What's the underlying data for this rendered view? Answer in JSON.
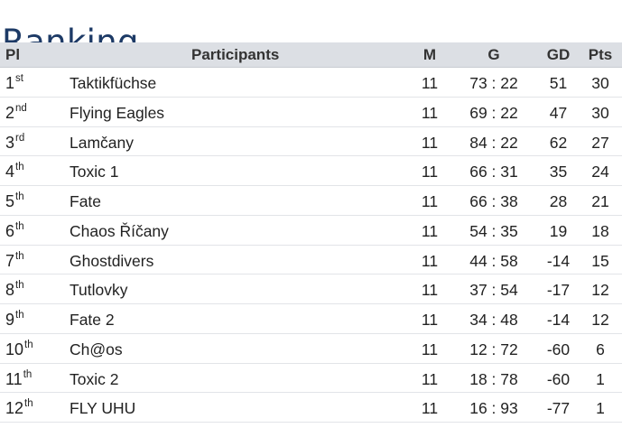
{
  "page": {
    "title": "Ranking",
    "title_color": "#1d3a66"
  },
  "table": {
    "header_bg": "#dcdfe4",
    "columns": {
      "pl": "Pl",
      "participants": "Participants",
      "m": "M",
      "g": "G",
      "gd": "GD",
      "pts": "Pts"
    },
    "rows": [
      {
        "rank": "1",
        "suffix": "st",
        "name": "Taktikfüchse",
        "m": "11",
        "g": "73 : 22",
        "gd": "51",
        "pts": "30"
      },
      {
        "rank": "2",
        "suffix": "nd",
        "name": "Flying Eagles",
        "m": "11",
        "g": "69 : 22",
        "gd": "47",
        "pts": "30"
      },
      {
        "rank": "3",
        "suffix": "rd",
        "name": "Lamčany",
        "m": "11",
        "g": "84 : 22",
        "gd": "62",
        "pts": "27"
      },
      {
        "rank": "4",
        "suffix": "th",
        "name": "Toxic 1",
        "m": "11",
        "g": "66 : 31",
        "gd": "35",
        "pts": "24"
      },
      {
        "rank": "5",
        "suffix": "th",
        "name": "Fate",
        "m": "11",
        "g": "66 : 38",
        "gd": "28",
        "pts": "21"
      },
      {
        "rank": "6",
        "suffix": "th",
        "name": "Chaos Říčany",
        "m": "11",
        "g": "54 : 35",
        "gd": "19",
        "pts": "18"
      },
      {
        "rank": "7",
        "suffix": "th",
        "name": "Ghostdivers",
        "m": "11",
        "g": "44 : 58",
        "gd": "-14",
        "pts": "15"
      },
      {
        "rank": "8",
        "suffix": "th",
        "name": "Tutlovky",
        "m": "11",
        "g": "37 : 54",
        "gd": "-17",
        "pts": "12"
      },
      {
        "rank": "9",
        "suffix": "th",
        "name": "Fate 2",
        "m": "11",
        "g": "34 : 48",
        "gd": "-14",
        "pts": "12"
      },
      {
        "rank": "10",
        "suffix": "th",
        "name": "Ch@os",
        "m": "11",
        "g": "12 : 72",
        "gd": "-60",
        "pts": "6"
      },
      {
        "rank": "11",
        "suffix": "th",
        "name": "Toxic 2",
        "m": "11",
        "g": "18 : 78",
        "gd": "-60",
        "pts": "1"
      },
      {
        "rank": "12",
        "suffix": "th",
        "name": "FLY UHU",
        "m": "11",
        "g": "16 : 93",
        "gd": "-77",
        "pts": "1"
      }
    ]
  }
}
